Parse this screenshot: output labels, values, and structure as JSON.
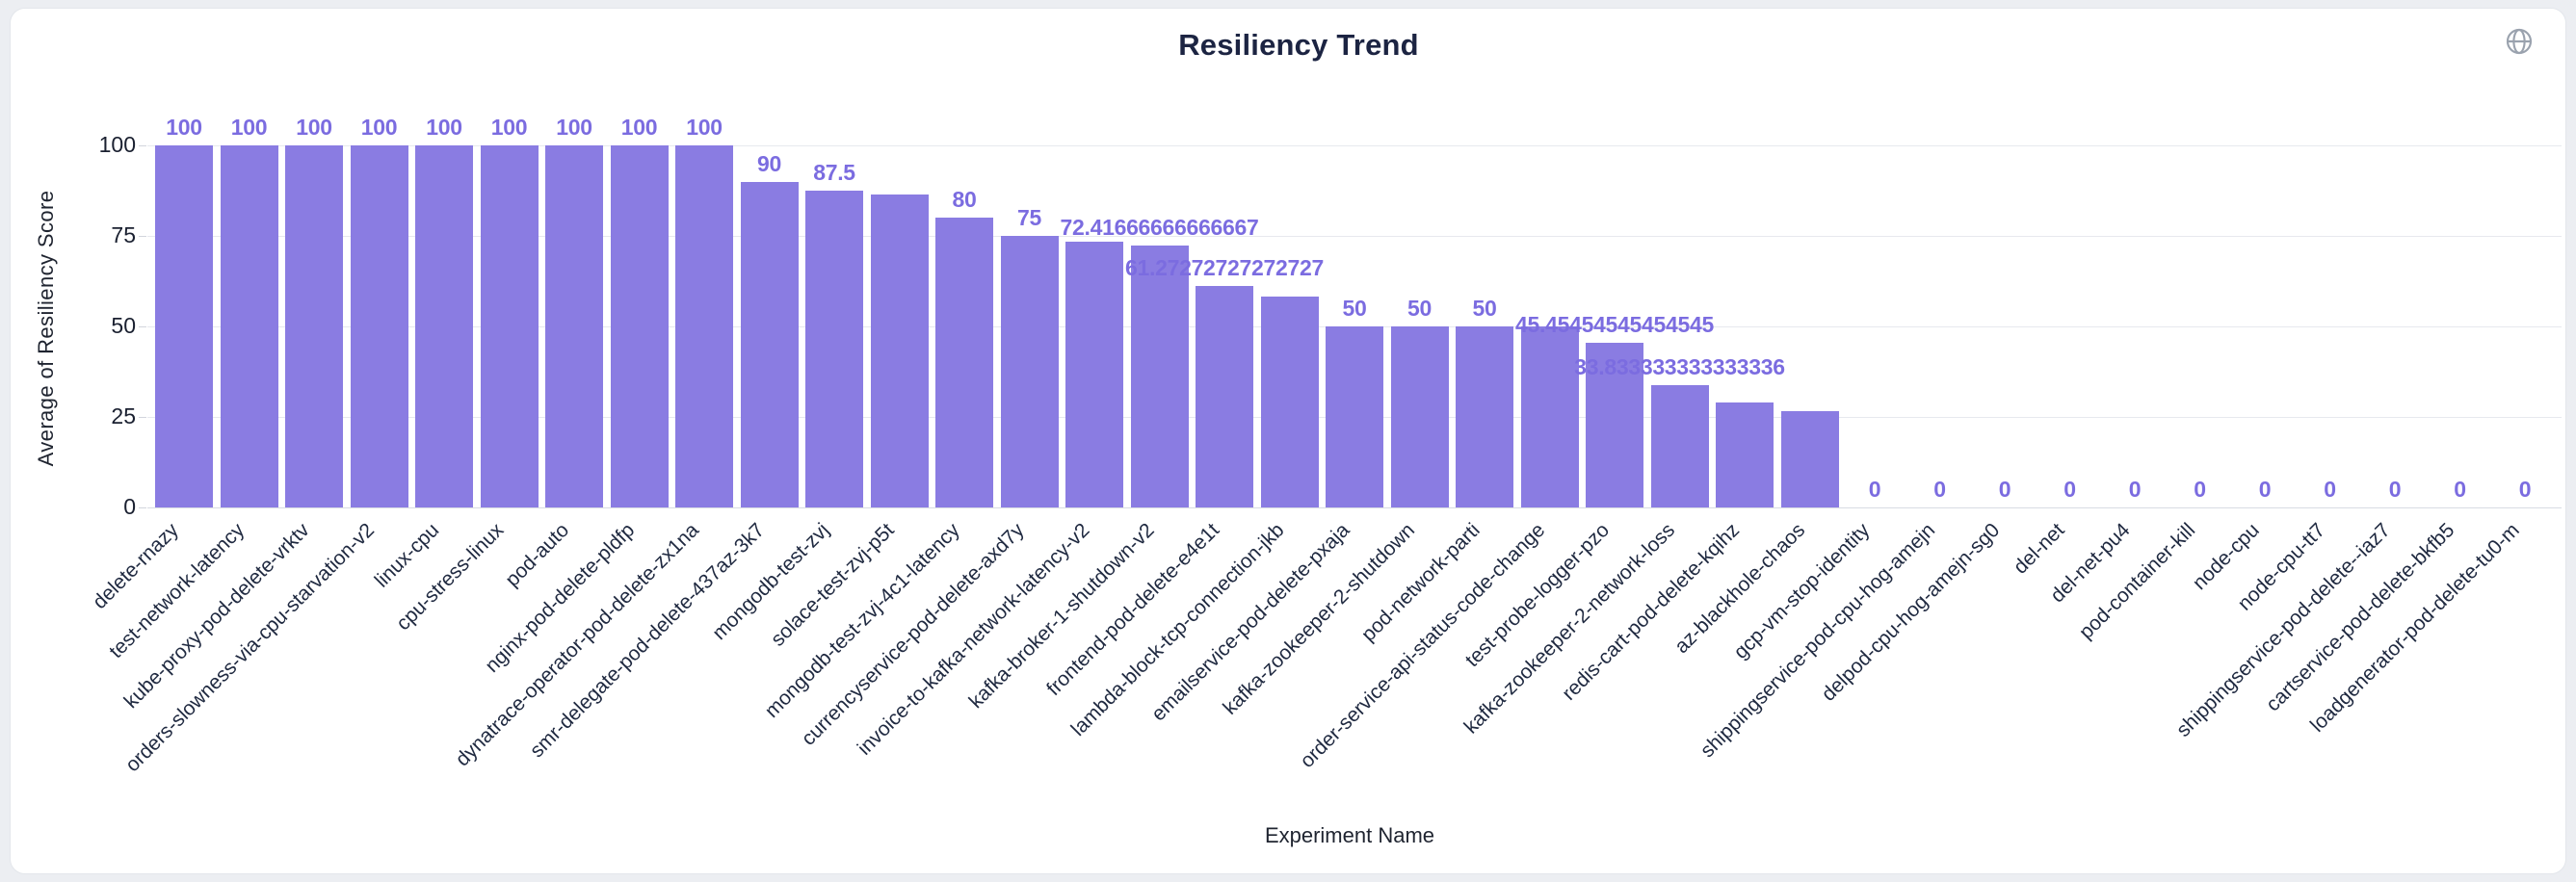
{
  "header": {
    "title": "Resiliency Trend"
  },
  "colors": {
    "bar": "#8a7ce2",
    "value_label": "#7b6ce0",
    "title_text": "#1c2442",
    "axis_text": "#1f2430",
    "category_text": "#1f2940",
    "grid": "#e7e9ee",
    "page_bg": "#eceef2",
    "card_bg": "#ffffff",
    "icon": "#9aa2ae"
  },
  "chart_data": {
    "type": "bar",
    "title": "Resiliency Trend",
    "xlabel": "Experiment Name",
    "ylabel": "Average of Resiliency Score",
    "ylim": [
      0,
      100
    ],
    "yticks": [
      0,
      25,
      50,
      75,
      100
    ],
    "grid": true,
    "legend_position": "none",
    "categories": [
      "delete-rnazy",
      "test-network-latency",
      "kube-proxy-pod-delete-vrktv",
      "orders-slowness-via-cpu-starvation-v2",
      "linux-cpu",
      "cpu-stress-linux",
      "pod-auto",
      "nginx-pod-delete-pldfp",
      "dynatrace-operator-pod-delete-zx1na",
      "smr-delegate-pod-delete-437az-3k7",
      "mongodb-test-zvj",
      "solace-test-zvj-p5t",
      "mongodb-test-zvj-4c1-latency",
      "currencyservice-pod-delete-axd7y",
      "invoice-to-kafka-network-latency-v2",
      "kafka-broker-1-shutdown-v2",
      "frontend-pod-delete-e4e1t",
      "lambda-block-tcp-connection-jkb",
      "emailservice-pod-delete-pxaja",
      "kafka-zookeeper-2-shutdown",
      "pod-network-parti",
      "order-service-api-status-code-change",
      "test-probe-logger-pzo",
      "kafka-zookeeper-2-network-loss",
      "redis-cart-pod-delete-kqihz",
      "az-blackhole-chaos",
      "gcp-vm-stop-identity",
      "shippingservice-pod-cpu-hog-amejn",
      "delpod-cpu-hog-amejn-sg0",
      "del-net",
      "del-net-pu4",
      "pod-container-kill",
      "node-cpu",
      "node-cpu-tt7",
      "shippingservice-pod-delete--iaz7",
      "cartservice-pod-delete-bkfb5",
      "loadgenerator-pod-delete-tu0-m"
    ],
    "values": [
      100,
      100,
      100,
      100,
      100,
      100,
      100,
      100,
      100,
      90,
      87.5,
      86.36363636363636,
      80,
      75,
      73.33333333333333,
      72.41666666666667,
      61.27272727272727,
      58.18181818181818,
      50,
      50,
      50,
      50,
      45.45454545454545,
      33.833333333333336,
      29,
      26.7,
      0,
      0,
      0,
      0,
      0,
      0,
      0,
      0,
      0,
      0,
      0
    ],
    "bar_labels": [
      "100",
      "100",
      "100",
      "100",
      "100",
      "100",
      "100",
      "100",
      "100",
      "90",
      "87.5",
      null,
      "80",
      "75",
      null,
      "72.41666666666667",
      "61.27272727272727",
      null,
      "50",
      "50",
      "50",
      null,
      "45.45454545454545",
      "33.833333333333336",
      null,
      null,
      "0",
      "0",
      "0",
      "0",
      "0",
      "0",
      "0",
      "0",
      "0",
      "0",
      "0"
    ]
  }
}
